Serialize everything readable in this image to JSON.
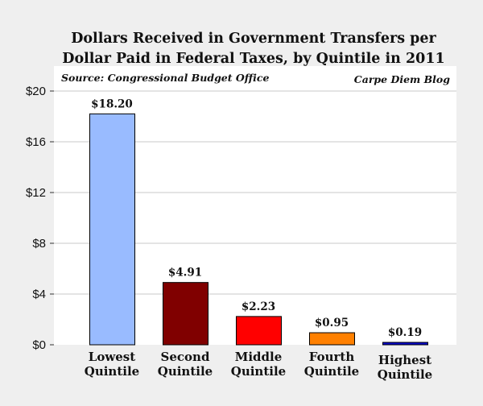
{
  "chart_data": {
    "type": "bar",
    "title": [
      "Dollars Received in Government Transfers per",
      "Dollar Paid in Federal Taxes, by Quintile in 2011"
    ],
    "source_note": "Source: Congressional Budget Office",
    "credit_note": "Carpe Diem Blog",
    "categories": [
      [
        "Lowest",
        "Quintile"
      ],
      [
        "Second",
        "Quintile"
      ],
      [
        "Middle",
        "Quintile"
      ],
      [
        "Fourth",
        "Quintile"
      ],
      [
        "Highest",
        "Quintile"
      ]
    ],
    "values": [
      18.2,
      4.91,
      2.23,
      0.95,
      0.19
    ],
    "data_labels": [
      "$18.20",
      "$4.91",
      "$2.23",
      "$0.95",
      "$0.19"
    ],
    "colors": [
      "#99bbff",
      "#800000",
      "#ff0000",
      "#ff8000",
      "#0000cc"
    ],
    "ylim": [
      0,
      20
    ],
    "yticks": [
      0,
      4,
      8,
      12,
      16,
      20
    ],
    "ytick_labels": [
      "$0",
      "$4",
      "$8",
      "$12",
      "$16",
      "$20"
    ],
    "xlabel": "",
    "ylabel": "",
    "grid": true,
    "legend": "none"
  }
}
